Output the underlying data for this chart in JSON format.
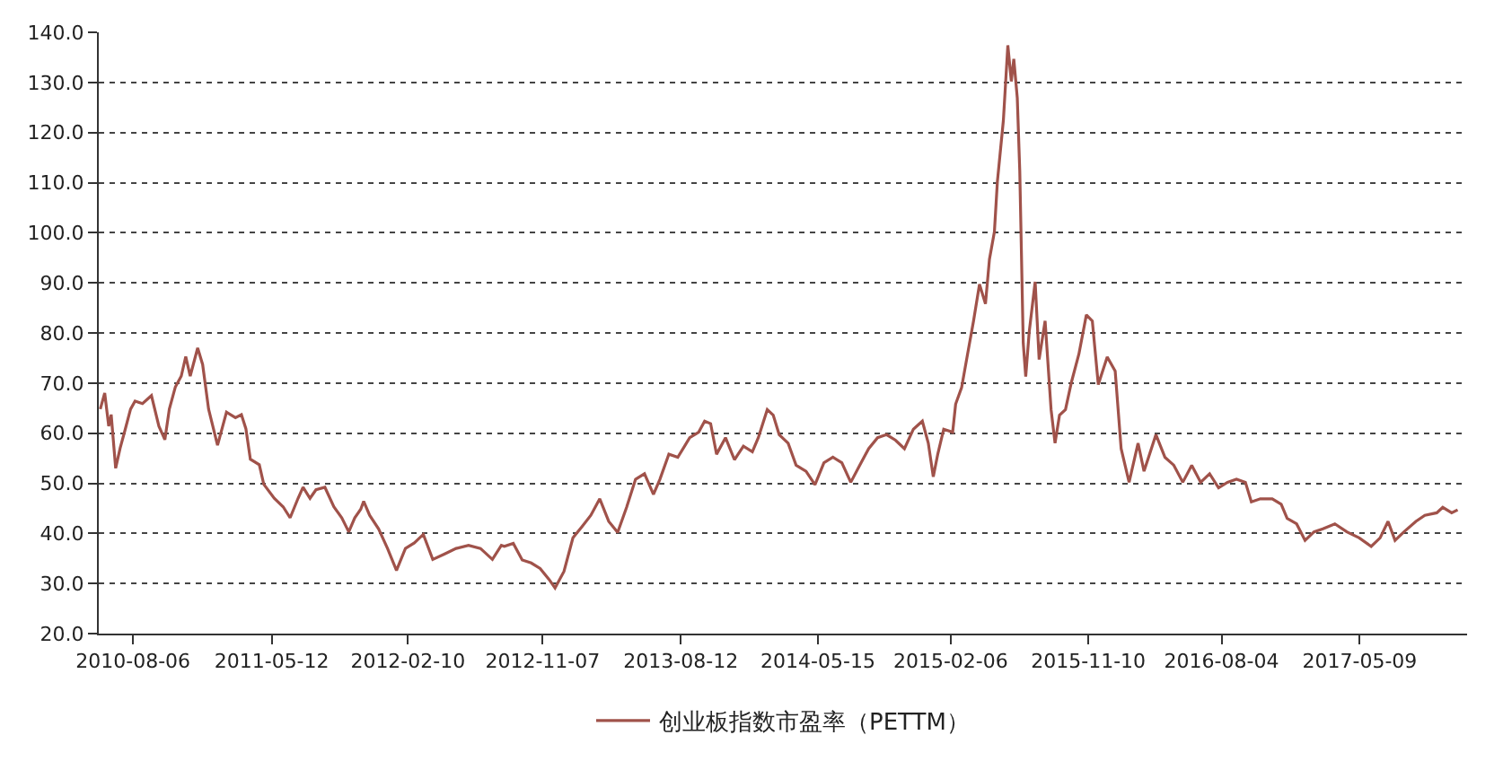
{
  "chart_data": {
    "type": "line",
    "x": [
      "2010-06-01",
      "2010-06-10",
      "2010-06-18",
      "2010-06-23",
      "2010-07-02",
      "2010-07-11",
      "2010-07-20",
      "2010-08-01",
      "2010-08-10",
      "2010-08-25",
      "2010-09-12",
      "2010-09-27",
      "2010-10-09",
      "2010-10-18",
      "2010-10-30",
      "2010-11-11",
      "2010-11-20",
      "2010-11-29",
      "2010-12-14",
      "2010-12-24",
      "2011-01-05",
      "2011-01-23",
      "2011-02-10",
      "2011-02-28",
      "2011-03-12",
      "2011-03-21",
      "2011-03-30",
      "2011-04-17",
      "2011-04-26",
      "2011-05-17",
      "2011-06-04",
      "2011-06-18",
      "2011-07-04",
      "2011-07-14",
      "2011-07-28",
      "2011-08-09",
      "2011-08-27",
      "2011-09-14",
      "2011-09-30",
      "2011-10-14",
      "2011-10-26",
      "2011-11-07",
      "2011-11-13",
      "2011-11-25",
      "2011-12-13",
      "2011-12-31",
      "2012-01-18",
      "2012-02-05",
      "2012-02-23",
      "2012-03-12",
      "2012-03-31",
      "2012-04-24",
      "2012-05-17",
      "2012-06-11",
      "2012-07-05",
      "2012-07-29",
      "2012-08-16",
      "2012-08-22",
      "2012-09-09",
      "2012-09-27",
      "2012-10-15",
      "2012-11-02",
      "2012-11-20",
      "2012-12-02",
      "2012-12-20",
      "2013-01-07",
      "2013-01-25",
      "2013-02-12",
      "2013-03-02",
      "2013-03-20",
      "2013-04-07",
      "2013-04-25",
      "2013-05-13",
      "2013-05-31",
      "2013-06-18",
      "2013-07-01",
      "2013-07-19",
      "2013-08-06",
      "2013-08-30",
      "2013-09-17",
      "2013-09-29",
      "2013-10-11",
      "2013-10-23",
      "2013-11-10",
      "2013-11-28",
      "2013-12-16",
      "2014-01-03",
      "2014-01-15",
      "2014-02-02",
      "2014-02-14",
      "2014-02-26",
      "2014-03-16",
      "2014-04-01",
      "2014-04-21",
      "2014-05-09",
      "2014-05-27",
      "2014-06-14",
      "2014-07-02",
      "2014-07-20",
      "2014-08-07",
      "2014-08-25",
      "2014-09-12",
      "2014-09-30",
      "2014-10-18",
      "2014-11-05",
      "2014-11-23",
      "2014-12-11",
      "2014-12-23",
      "2015-01-02",
      "2015-01-11",
      "2015-01-23",
      "2015-02-10",
      "2015-02-16",
      "2015-02-28",
      "2015-03-12",
      "2015-03-24",
      "2015-04-05",
      "2015-04-17",
      "2015-04-25",
      "2015-05-05",
      "2015-05-11",
      "2015-05-23",
      "2015-06-01",
      "2015-06-08",
      "2015-06-13",
      "2015-06-20",
      "2015-06-25",
      "2015-07-02",
      "2015-07-07",
      "2015-07-14",
      "2015-07-26",
      "2015-08-03",
      "2015-08-15",
      "2015-08-27",
      "2015-09-04",
      "2015-09-13",
      "2015-09-25",
      "2015-10-07",
      "2015-10-22",
      "2015-11-06",
      "2015-11-18",
      "2015-11-30",
      "2015-12-18",
      "2016-01-03",
      "2016-01-15",
      "2016-01-31",
      "2016-02-18",
      "2016-03-01",
      "2016-03-25",
      "2016-04-12",
      "2016-04-30",
      "2016-05-18",
      "2016-06-05",
      "2016-06-23",
      "2016-07-11",
      "2016-07-29",
      "2016-08-16",
      "2016-09-03",
      "2016-09-21",
      "2016-10-03",
      "2016-10-21",
      "2016-11-14",
      "2016-12-02",
      "2016-12-14",
      "2017-01-02",
      "2017-01-19",
      "2017-02-06",
      "2017-02-24",
      "2017-03-20",
      "2017-04-13",
      "2017-05-08",
      "2017-06-01",
      "2017-06-19",
      "2017-07-05",
      "2017-07-19",
      "2017-08-06",
      "2017-08-30",
      "2017-09-17",
      "2017-10-11",
      "2017-10-23",
      "2017-11-10",
      "2017-11-22"
    ],
    "series": [
      {
        "name": "创业板指数市盈率（PETTM）",
        "color": "#a0524a",
        "values": [
          64.8,
          68,
          61.4,
          63.7,
          53,
          57,
          60.3,
          64.8,
          66.4,
          65.9,
          67.5,
          61.4,
          58.7,
          64.8,
          69.2,
          71.4,
          75.3,
          71.4,
          77,
          73.7,
          64.8,
          57.6,
          64.2,
          63.1,
          63.7,
          60.9,
          54.8,
          53.7,
          49.8,
          47,
          45.3,
          43.1,
          47,
          49.2,
          47,
          48.7,
          49.2,
          45.3,
          43.1,
          40.3,
          43.1,
          44.8,
          46.4,
          43.6,
          40.9,
          37,
          32.6,
          37,
          38.1,
          39.8,
          34.8,
          35.9,
          37,
          37.6,
          37,
          34.8,
          37.6,
          37.4,
          38,
          34.7,
          34.1,
          33,
          30.8,
          29.1,
          32.4,
          39.1,
          41.3,
          43.6,
          46.9,
          42.4,
          40.2,
          45.2,
          50.8,
          51.9,
          47.8,
          50.8,
          55.8,
          55.2,
          59.1,
          60.2,
          62.4,
          61.9,
          55.8,
          59.1,
          54.7,
          57.4,
          56.3,
          59.1,
          64.7,
          63.6,
          59.7,
          58,
          53.6,
          52.4,
          49.7,
          54.1,
          55.2,
          54.1,
          50.2,
          53.6,
          56.9,
          59.1,
          59.7,
          58.6,
          56.9,
          60.8,
          62.4,
          58,
          51.3,
          55.8,
          60.8,
          60.2,
          65.8,
          69.1,
          75.8,
          82.4,
          89.7,
          85.8,
          94.7,
          100.2,
          110.2,
          122.4,
          137.4,
          130.2,
          134.7,
          126.9,
          112.4,
          78,
          71.3,
          80.2,
          90.2,
          74.7,
          82.4,
          64.7,
          58,
          63.6,
          64.7,
          70.2,
          75.8,
          83.6,
          82.4,
          69.7,
          75.2,
          72.4,
          56.9,
          50.2,
          58,
          52.4,
          59.7,
          55.2,
          53.6,
          50.2,
          53.6,
          50.2,
          51.9,
          49.1,
          50.2,
          50.8,
          50.2,
          46.3,
          46.9,
          46.9,
          45.8,
          43,
          41.9,
          38.6,
          40.3,
          40.9,
          41.9,
          40.3,
          39.1,
          37.4,
          39.1,
          42.4,
          38.6,
          40.3,
          42.4,
          43.6,
          44.1,
          45.2,
          44.1,
          44.7
        ]
      }
    ],
    "xlim": [
      "2010-05-29",
      "2017-12-11"
    ],
    "xticks": [
      "2010-08-06",
      "2011-05-12",
      "2012-02-10",
      "2012-11-07",
      "2013-08-12",
      "2014-05-15",
      "2015-02-06",
      "2015-11-10",
      "2016-08-04",
      "2017-05-09"
    ],
    "ylim": [
      20,
      140
    ],
    "yticks": [
      {
        "value": 20,
        "label": "20.0"
      },
      {
        "value": 30,
        "label": "30.0"
      },
      {
        "value": 40,
        "label": "40.0"
      },
      {
        "value": 50,
        "label": "50.0"
      },
      {
        "value": 60,
        "label": "60.0"
      },
      {
        "value": 70,
        "label": "70.0"
      },
      {
        "value": 80,
        "label": "80.0"
      },
      {
        "value": 90,
        "label": "90.0"
      },
      {
        "value": 100,
        "label": "100.0"
      },
      {
        "value": 110,
        "label": "110.0"
      },
      {
        "value": 120,
        "label": "120.0"
      },
      {
        "value": 130,
        "label": "130.0"
      },
      {
        "value": 140,
        "label": "140.0"
      }
    ],
    "grid": "y",
    "legend": "bottom",
    "marker": "none",
    "line_style": "solid"
  }
}
